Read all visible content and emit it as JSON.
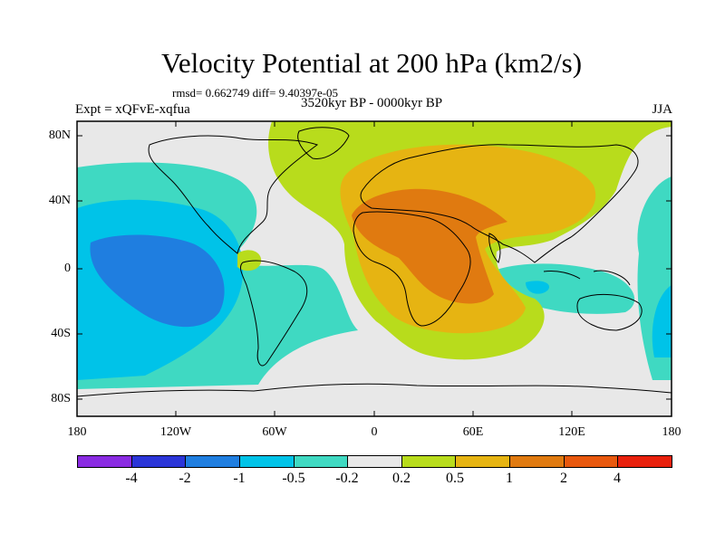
{
  "header": {
    "title": "Velocity Potential at 200 hPa (km2/s)",
    "stats": "rmsd= 0.662749 diff= 9.40397e-05",
    "period": "3520kyr BP - 0000kyr BP",
    "experiment": "Expt = xQFvE-xqfua",
    "season": "JJA"
  },
  "axes": {
    "lat_labels": [
      "80N",
      "40N",
      "0",
      "40S",
      "80S"
    ],
    "lon_labels": [
      "180",
      "120W",
      "60W",
      "0",
      "60E",
      "120E",
      "180"
    ]
  },
  "colorbar": {
    "colors": [
      "#8a2be2",
      "#2b35d8",
      "#1f7ee0",
      "#00c3e8",
      "#3fd9c2",
      "#e8e8e8",
      "#b8dc1c",
      "#e6b412",
      "#e07a10",
      "#e8580e",
      "#e8200c"
    ],
    "labels": [
      "-4",
      "-2",
      "-1",
      "-0.5",
      "-0.2",
      "0.2",
      "0.5",
      "1",
      "2",
      "4"
    ]
  }
}
